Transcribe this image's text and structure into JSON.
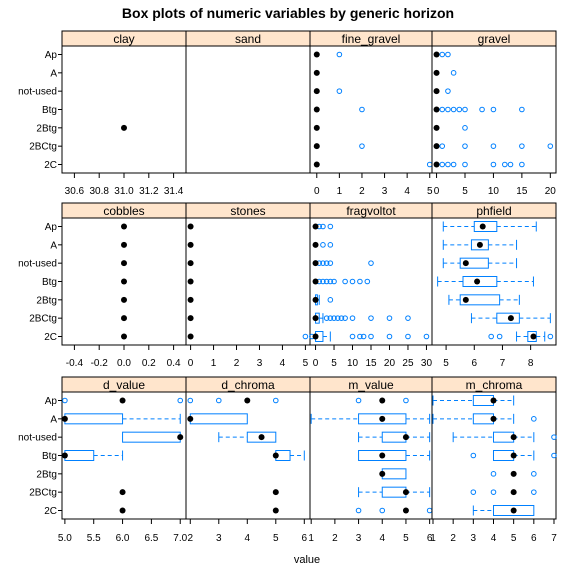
{
  "chart_data": {
    "type": "boxplot",
    "title": "Box plots of numeric variables by generic horizon",
    "xlabel": "value",
    "horizons": [
      "Ap",
      "A",
      "not-used",
      "Btg",
      "2Btg",
      "2BCtg",
      "2C"
    ],
    "colors": {
      "strip": "#ffe5cc",
      "box": "#0080ff",
      "median": "#000000",
      "frame": "#000000"
    },
    "panel_rows": [
      {
        "ticks": [
          {
            "values": [
              30.6,
              30.8,
              31.0,
              31.2,
              31.4
            ],
            "labels": [
              "30.6",
              "30.8",
              "31.0",
              "31.2",
              "31.4"
            ]
          },
          null,
          {
            "values": [
              0,
              1,
              2,
              3,
              4,
              5
            ],
            "labels": [
              "0",
              "1",
              "2",
              "3",
              "4",
              "5"
            ]
          },
          {
            "values": [
              0,
              5,
              10,
              15,
              20
            ],
            "labels": [
              "0",
              "5",
              "10",
              "15",
              "20"
            ]
          }
        ]
      },
      {
        "ticks": [
          {
            "values": [
              -0.4,
              -0.2,
              0.0,
              0.2,
              0.4
            ],
            "labels": [
              "-0.4",
              "-0.2",
              "0.0",
              "0.2",
              "0.4"
            ]
          },
          {
            "values": [
              0,
              1,
              2,
              3,
              4,
              5
            ],
            "labels": [
              "0",
              "1",
              "2",
              "3",
              "4",
              "5"
            ]
          },
          {
            "values": [
              0,
              5,
              10,
              15,
              20,
              25,
              30
            ],
            "labels": [
              "0",
              "5",
              "10",
              "15",
              "20",
              "25",
              "30"
            ]
          },
          {
            "values": [
              5,
              6,
              7,
              8
            ],
            "labels": [
              "5",
              "6",
              "7",
              "8"
            ]
          }
        ]
      },
      {
        "ticks": [
          {
            "values": [
              5.0,
              5.5,
              6.0,
              6.5,
              7.0
            ],
            "labels": [
              "5.0",
              "5.5",
              "6.0",
              "6.5",
              "7.0"
            ]
          },
          {
            "values": [
              2,
              3,
              4,
              5,
              6
            ],
            "labels": [
              "2",
              "3",
              "4",
              "5",
              "6"
            ]
          },
          {
            "values": [
              1,
              2,
              3,
              4,
              5,
              6
            ],
            "labels": [
              "1",
              "2",
              "3",
              "4",
              "5",
              "6"
            ]
          },
          {
            "values": [
              1,
              2,
              3,
              4,
              5,
              6,
              7
            ],
            "labels": [
              "1",
              "2",
              "3",
              "4",
              "5",
              "6",
              "7"
            ]
          }
        ]
      }
    ],
    "panels": [
      {
        "name": "clay",
        "xlim": [
          30.5,
          31.5
        ],
        "groups": [
          null,
          null,
          null,
          null,
          {
            "median": 31.0,
            "q1": 31.0,
            "q3": 31.0,
            "wlo": 31.0,
            "whi": 31.0,
            "outliers": []
          },
          null,
          null
        ]
      },
      {
        "name": "sand",
        "xlim": [
          0,
          1
        ],
        "groups": [
          null,
          null,
          null,
          null,
          null,
          null,
          null
        ]
      },
      {
        "name": "fine_gravel",
        "xlim": [
          -0.3,
          5.1
        ],
        "groups": [
          {
            "median": 0,
            "q1": 0,
            "q3": 0,
            "wlo": 0,
            "whi": 0,
            "outliers": [
              1
            ]
          },
          {
            "median": 0,
            "q1": 0,
            "q3": 0,
            "wlo": 0,
            "whi": 0,
            "outliers": []
          },
          {
            "median": 0,
            "q1": 0,
            "q3": 0,
            "wlo": 0,
            "whi": 0,
            "outliers": [
              1
            ]
          },
          {
            "median": 0,
            "q1": 0,
            "q3": 0,
            "wlo": 0,
            "whi": 0,
            "outliers": [
              2
            ]
          },
          {
            "median": 0,
            "q1": 0,
            "q3": 0,
            "wlo": 0,
            "whi": 0,
            "outliers": []
          },
          {
            "median": 0,
            "q1": 0,
            "q3": 0,
            "wlo": 0,
            "whi": 0,
            "outliers": [
              2
            ]
          },
          {
            "median": 0,
            "q1": 0,
            "q3": 0,
            "wlo": 0,
            "whi": 0,
            "outliers": [
              5
            ]
          }
        ]
      },
      {
        "name": "gravel",
        "xlim": [
          -0.8,
          21
        ],
        "groups": [
          {
            "median": 0,
            "q1": 0,
            "q3": 0,
            "wlo": 0,
            "whi": 0,
            "outliers": [
              1,
              2
            ]
          },
          {
            "median": 0,
            "q1": 0,
            "q3": 0,
            "wlo": 0,
            "whi": 0,
            "outliers": [
              3
            ]
          },
          {
            "median": 0,
            "q1": 0,
            "q3": 0,
            "wlo": 0,
            "whi": 0,
            "outliers": [
              2
            ]
          },
          {
            "median": 0,
            "q1": 0,
            "q3": 0,
            "wlo": 0,
            "whi": 0,
            "outliers": [
              1,
              2,
              3,
              4,
              5,
              8,
              10,
              15
            ]
          },
          {
            "median": 0,
            "q1": 0,
            "q3": 0,
            "wlo": 0,
            "whi": 0,
            "outliers": [
              5
            ]
          },
          {
            "median": 0,
            "q1": 0,
            "q3": 0,
            "wlo": 0,
            "whi": 0,
            "outliers": [
              1,
              5,
              10,
              15,
              20
            ]
          },
          {
            "median": 0,
            "q1": 0,
            "q3": 0,
            "wlo": 0,
            "whi": 0,
            "outliers": [
              1,
              2,
              3,
              5,
              10,
              12,
              13,
              15
            ]
          }
        ]
      },
      {
        "name": "cobbles",
        "xlim": [
          -0.5,
          0.5
        ],
        "groups": [
          {
            "median": 0,
            "q1": 0,
            "q3": 0,
            "wlo": 0,
            "whi": 0,
            "outliers": []
          },
          {
            "median": 0,
            "q1": 0,
            "q3": 0,
            "wlo": 0,
            "whi": 0,
            "outliers": []
          },
          {
            "median": 0,
            "q1": 0,
            "q3": 0,
            "wlo": 0,
            "whi": 0,
            "outliers": []
          },
          {
            "median": 0,
            "q1": 0,
            "q3": 0,
            "wlo": 0,
            "whi": 0,
            "outliers": []
          },
          {
            "median": 0,
            "q1": 0,
            "q3": 0,
            "wlo": 0,
            "whi": 0,
            "outliers": []
          },
          {
            "median": 0,
            "q1": 0,
            "q3": 0,
            "wlo": 0,
            "whi": 0,
            "outliers": []
          },
          {
            "median": 0,
            "q1": 0,
            "q3": 0,
            "wlo": 0,
            "whi": 0,
            "outliers": []
          }
        ]
      },
      {
        "name": "stones",
        "xlim": [
          -0.2,
          5.2
        ],
        "groups": [
          {
            "median": 0,
            "q1": 0,
            "q3": 0,
            "wlo": 0,
            "whi": 0,
            "outliers": []
          },
          {
            "median": 0,
            "q1": 0,
            "q3": 0,
            "wlo": 0,
            "whi": 0,
            "outliers": []
          },
          {
            "median": 0,
            "q1": 0,
            "q3": 0,
            "wlo": 0,
            "whi": 0,
            "outliers": []
          },
          {
            "median": 0,
            "q1": 0,
            "q3": 0,
            "wlo": 0,
            "whi": 0,
            "outliers": []
          },
          {
            "median": 0,
            "q1": 0,
            "q3": 0,
            "wlo": 0,
            "whi": 0,
            "outliers": []
          },
          {
            "median": 0,
            "q1": 0,
            "q3": 0,
            "wlo": 0,
            "whi": 0,
            "outliers": []
          },
          {
            "median": 0,
            "q1": 0,
            "q3": 0,
            "wlo": 0,
            "whi": 0,
            "outliers": [
              5
            ]
          }
        ]
      },
      {
        "name": "fragvoltot",
        "xlim": [
          -1.5,
          31.5
        ],
        "groups": [
          {
            "median": 0,
            "q1": 0,
            "q3": 0,
            "wlo": 0,
            "whi": 0,
            "outliers": [
              1,
              2,
              4
            ]
          },
          {
            "median": 0,
            "q1": 0,
            "q3": 0,
            "wlo": 0,
            "whi": 0,
            "outliers": [
              2,
              4
            ]
          },
          {
            "median": 0,
            "q1": 0,
            "q3": 0,
            "wlo": 0,
            "whi": 0,
            "outliers": [
              1,
              2,
              3,
              4,
              15
            ]
          },
          {
            "median": 0,
            "q1": 0,
            "q3": 0,
            "wlo": 0,
            "whi": 0,
            "outliers": [
              1,
              2,
              3,
              4,
              5,
              8,
              10,
              12,
              14
            ]
          },
          {
            "median": 0,
            "q1": 0,
            "q3": 0.5,
            "wlo": 0,
            "whi": 1,
            "outliers": [
              4
            ]
          },
          {
            "median": 0,
            "q1": 0,
            "q3": 1,
            "wlo": 0,
            "whi": 2,
            "outliers": [
              3,
              4,
              5,
              6,
              7,
              8,
              10,
              15,
              20,
              25
            ]
          },
          {
            "median": 0,
            "q1": 0,
            "q3": 2,
            "wlo": 0,
            "whi": 4,
            "outliers": [
              -1,
              10,
              12,
              13,
              15,
              20,
              25,
              30
            ]
          }
        ]
      },
      {
        "name": "phfield",
        "xlim": [
          4.5,
          8.9
        ],
        "groups": [
          {
            "median": 6.3,
            "q1": 6.0,
            "q3": 6.8,
            "wlo": 4.9,
            "whi": 8.2,
            "outliers": []
          },
          {
            "median": 6.2,
            "q1": 5.9,
            "q3": 6.5,
            "wlo": 4.9,
            "whi": 7.5,
            "outliers": []
          },
          {
            "median": 5.7,
            "q1": 5.5,
            "q3": 6.5,
            "wlo": 4.9,
            "whi": 7.5,
            "outliers": []
          },
          {
            "median": 6.1,
            "q1": 5.6,
            "q3": 6.8,
            "wlo": 4.7,
            "whi": 8.1,
            "outliers": []
          },
          {
            "median": 5.7,
            "q1": 5.5,
            "q3": 6.9,
            "wlo": 5.1,
            "whi": 7.6,
            "outliers": []
          },
          {
            "median": 7.3,
            "q1": 6.8,
            "q3": 7.6,
            "wlo": 5.9,
            "whi": 8.7,
            "outliers": []
          },
          {
            "median": 8.1,
            "q1": 7.9,
            "q3": 8.2,
            "wlo": 7.5,
            "whi": 8.5,
            "outliers": [
              6.6,
              6.9,
              8.7
            ]
          }
        ]
      },
      {
        "name": "d_value",
        "xlim": [
          4.95,
          7.1
        ],
        "groups": [
          {
            "median": 6.0,
            "q1": 6.0,
            "q3": 6.0,
            "wlo": 6.0,
            "whi": 6.0,
            "outliers": [
              5.0,
              7.0
            ]
          },
          {
            "median": 5.0,
            "q1": 5.0,
            "q3": 6.0,
            "wlo": 5.0,
            "whi": 7.0,
            "outliers": []
          },
          {
            "median": 7.0,
            "q1": 6.0,
            "q3": 7.0,
            "wlo": 6.0,
            "whi": 7.0,
            "outliers": []
          },
          {
            "median": 5.0,
            "q1": 5.0,
            "q3": 5.5,
            "wlo": 5.0,
            "whi": 6.0,
            "outliers": []
          },
          null,
          {
            "median": 6.0,
            "q1": 6.0,
            "q3": 6.0,
            "wlo": 6.0,
            "whi": 6.0,
            "outliers": []
          },
          {
            "median": 6.0,
            "q1": 6.0,
            "q3": 6.0,
            "wlo": 6.0,
            "whi": 6.0,
            "outliers": []
          }
        ]
      },
      {
        "name": "d_chroma",
        "xlim": [
          1.85,
          6.2
        ],
        "groups": [
          {
            "median": 4.0,
            "q1": 4.0,
            "q3": 4.0,
            "wlo": 4.0,
            "whi": 4.0,
            "outliers": [
              2,
              3,
              5
            ]
          },
          {
            "median": 2.0,
            "q1": 2.0,
            "q3": 4.0,
            "wlo": 2.0,
            "whi": 4.0,
            "outliers": []
          },
          {
            "median": 4.5,
            "q1": 4.0,
            "q3": 5.0,
            "wlo": 3.0,
            "whi": 5.0,
            "outliers": []
          },
          {
            "median": 5.0,
            "q1": 5.0,
            "q3": 5.5,
            "wlo": 5.0,
            "whi": 6.0,
            "outliers": []
          },
          null,
          {
            "median": 5.0,
            "q1": 5.0,
            "q3": 5.0,
            "wlo": 5.0,
            "whi": 5.0,
            "outliers": []
          },
          {
            "median": 5.0,
            "q1": 5.0,
            "q3": 5.0,
            "wlo": 5.0,
            "whi": 5.0,
            "outliers": []
          }
        ]
      },
      {
        "name": "m_value",
        "xlim": [
          0.95,
          6.1
        ],
        "groups": [
          {
            "median": 4.0,
            "q1": 4.0,
            "q3": 4.0,
            "wlo": 4.0,
            "whi": 4.0,
            "outliers": [
              3,
              5
            ]
          },
          {
            "median": 4.0,
            "q1": 3.0,
            "q3": 5.0,
            "wlo": 1.0,
            "whi": 6.0,
            "outliers": []
          },
          {
            "median": 5.0,
            "q1": 4.0,
            "q3": 5.0,
            "wlo": 3.0,
            "whi": 6.0,
            "outliers": []
          },
          {
            "median": 4.0,
            "q1": 3.0,
            "q3": 5.0,
            "wlo": 3.0,
            "whi": 6.0,
            "outliers": []
          },
          {
            "median": 4.0,
            "q1": 4.0,
            "q3": 5.0,
            "wlo": 4.0,
            "whi": 5.0,
            "outliers": []
          },
          {
            "median": 5.0,
            "q1": 4.0,
            "q3": 5.0,
            "wlo": 3.0,
            "whi": 6.0,
            "outliers": []
          },
          {
            "median": 5.0,
            "q1": 5.0,
            "q3": 5.0,
            "wlo": 5.0,
            "whi": 5.0,
            "outliers": [
              3,
              4,
              6
            ]
          }
        ]
      },
      {
        "name": "m_chroma",
        "xlim": [
          0.95,
          7.1
        ],
        "groups": [
          {
            "median": 4.0,
            "q1": 3.0,
            "q3": 4.0,
            "wlo": 1.0,
            "whi": 5.0,
            "outliers": []
          },
          {
            "median": 4.0,
            "q1": 3.0,
            "q3": 4.0,
            "wlo": 1.0,
            "whi": 5.0,
            "outliers": [
              6
            ]
          },
          {
            "median": 5.0,
            "q1": 4.0,
            "q3": 5.0,
            "wlo": 2.0,
            "whi": 6.0,
            "outliers": [
              7
            ]
          },
          {
            "median": 5.0,
            "q1": 4.0,
            "q3": 5.0,
            "wlo": 4.0,
            "whi": 6.0,
            "outliers": [
              3,
              7
            ]
          },
          {
            "median": 5.0,
            "q1": 5.0,
            "q3": 5.0,
            "wlo": 5.0,
            "whi": 5.0,
            "outliers": [
              4,
              6
            ]
          },
          {
            "median": 5.0,
            "q1": 5.0,
            "q3": 5.0,
            "wlo": 5.0,
            "whi": 5.0,
            "outliers": [
              3,
              4,
              6
            ]
          },
          {
            "median": 5.0,
            "q1": 4.0,
            "q3": 6.0,
            "wlo": 3.0,
            "whi": 6.0,
            "outliers": []
          }
        ]
      }
    ]
  }
}
